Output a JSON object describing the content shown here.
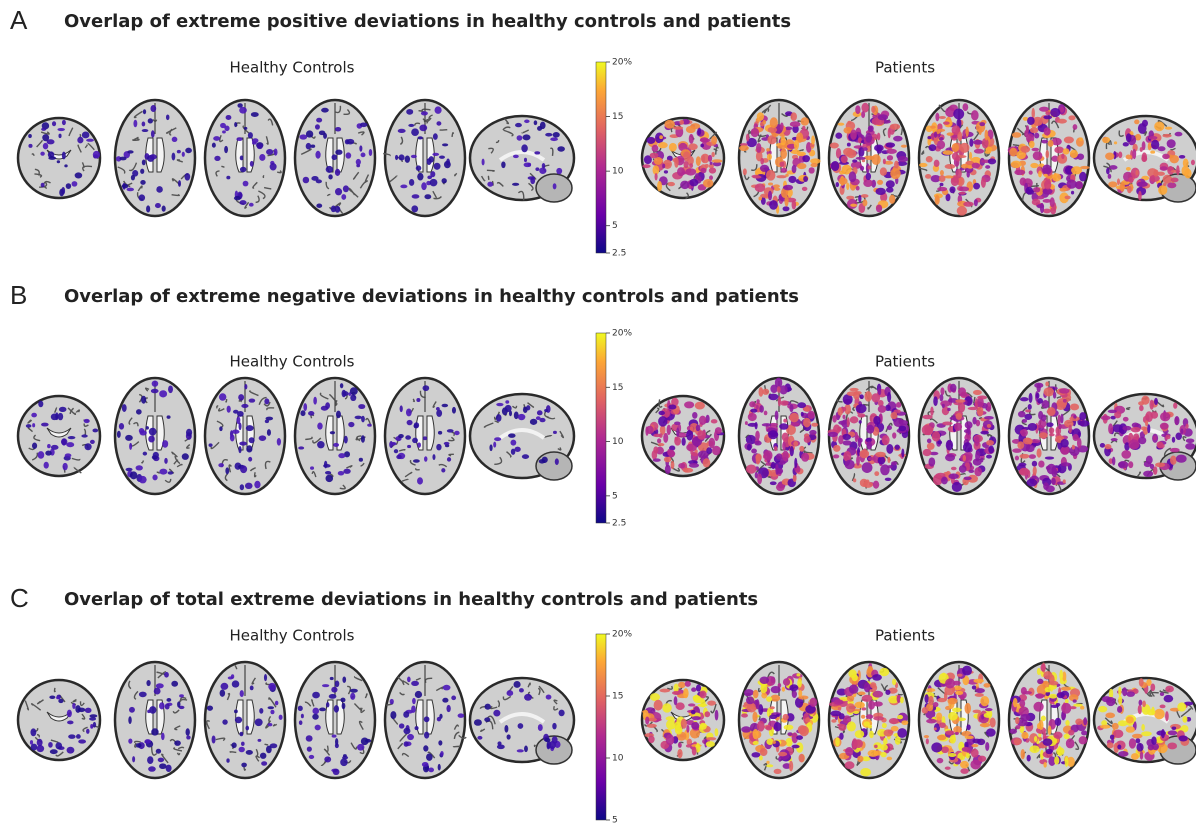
{
  "panels": [
    {
      "label": "A",
      "title": "Overlap of extreme positive deviations in healthy controls and patients",
      "groups": [
        "Healthy Controls",
        "Patients"
      ],
      "colorbar": {
        "range": [
          2.5,
          20
        ],
        "ticks": [
          {
            "value": 20,
            "label": "20%"
          },
          15,
          10,
          5,
          2.5
        ]
      }
    },
    {
      "label": "B",
      "title": "Overlap of extreme negative deviations in healthy controls and patients",
      "groups": [
        "Healthy Controls",
        "Patients"
      ],
      "colorbar": {
        "range": [
          2.5,
          20
        ],
        "ticks": [
          {
            "value": 20,
            "label": "20%"
          },
          15,
          10,
          5,
          2.5
        ]
      }
    },
    {
      "label": "C",
      "title": "Overlap of total extreme deviations in healthy controls and patients",
      "groups": [
        "Healthy Controls",
        "Patients"
      ],
      "colorbar": {
        "range": [
          5,
          20
        ],
        "ticks": [
          {
            "value": 20,
            "label": "20%"
          },
          15,
          10,
          5
        ]
      }
    }
  ]
}
